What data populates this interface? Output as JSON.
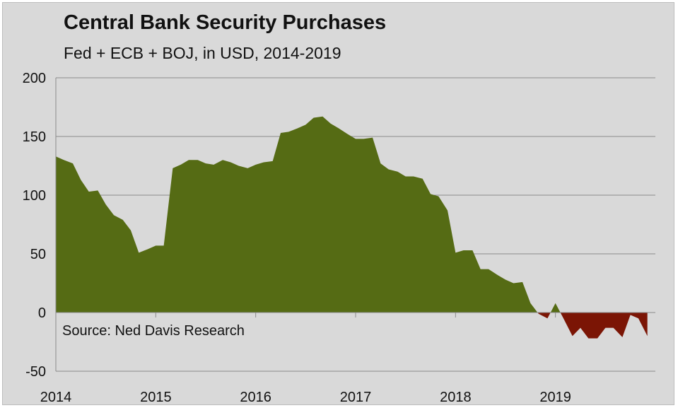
{
  "chart_data": {
    "type": "area",
    "title": "Central Bank Security Purchases",
    "subtitle": "Fed + ECB + BOJ, in USD, 2014-2019",
    "xlabel": "",
    "ylabel": "",
    "annotation": "Source:  Ned Davis Research",
    "ylim": [
      -50,
      200
    ],
    "xlim": [
      2014,
      2020
    ],
    "yticks": [
      -50,
      0,
      50,
      100,
      150,
      200
    ],
    "xticks": [
      "2014",
      "2015",
      "2016",
      "2017",
      "2018",
      "2019"
    ],
    "grid": "horizontal",
    "colors": {
      "positive": "#556b14",
      "negative": "#7b1505",
      "gridline": "#8c8c8c",
      "background": "#d9d9d9"
    },
    "x": [
      2014.0,
      2014.08,
      2014.17,
      2014.25,
      2014.33,
      2014.42,
      2014.5,
      2014.58,
      2014.67,
      2014.75,
      2014.83,
      2014.92,
      2015.0,
      2015.08,
      2015.17,
      2015.25,
      2015.33,
      2015.42,
      2015.5,
      2015.58,
      2015.67,
      2015.75,
      2015.83,
      2015.92,
      2016.0,
      2016.08,
      2016.17,
      2016.25,
      2016.33,
      2016.42,
      2016.5,
      2016.58,
      2016.67,
      2016.75,
      2016.83,
      2016.92,
      2017.0,
      2017.08,
      2017.17,
      2017.25,
      2017.33,
      2017.42,
      2017.5,
      2017.58,
      2017.67,
      2017.75,
      2017.83,
      2017.92,
      2018.0,
      2018.08,
      2018.17,
      2018.25,
      2018.33,
      2018.42,
      2018.5,
      2018.58,
      2018.67,
      2018.75,
      2018.83,
      2018.92,
      2019.0,
      2019.08,
      2019.17,
      2019.25,
      2019.33,
      2019.42,
      2019.5,
      2019.58,
      2019.67,
      2019.75,
      2019.83,
      2019.92
    ],
    "values": [
      133,
      130,
      127,
      113,
      103,
      104,
      92,
      83,
      79,
      70,
      51,
      54,
      57,
      57,
      123,
      126,
      130,
      130,
      127,
      126,
      130,
      128,
      125,
      123,
      126,
      128,
      129,
      153,
      154,
      157,
      160,
      166,
      167,
      161,
      157,
      152,
      148,
      148,
      149,
      127,
      122,
      120,
      116,
      116,
      114,
      101,
      99,
      87,
      51,
      53,
      53,
      37,
      37,
      32,
      28,
      25,
      26,
      8,
      -1,
      -5,
      8,
      -5,
      -20,
      -13,
      -22,
      -22,
      -13,
      -13,
      -21,
      -2,
      -5,
      -20
    ]
  }
}
